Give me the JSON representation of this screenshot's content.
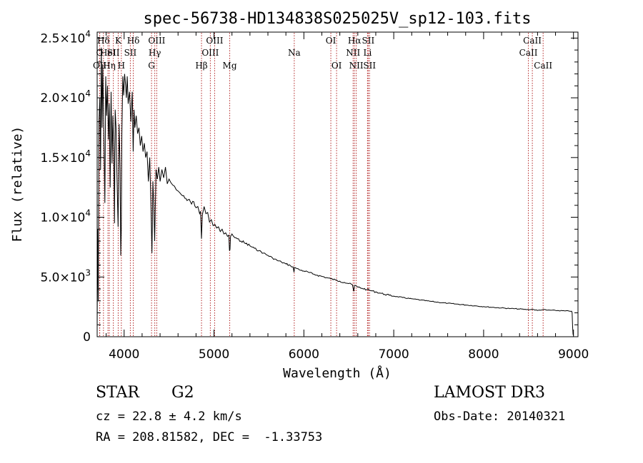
{
  "chart_data": {
    "type": "line",
    "title": "spec-56738-HD134838S025025V_sp12-103.fits",
    "xlabel": "Wavelength (Å)",
    "ylabel": "Flux (relative)",
    "xlim": [
      3700,
      9050
    ],
    "ylim": [
      0,
      25500
    ],
    "grid": false,
    "xticks": [
      {
        "value": 4000,
        "label": "4000"
      },
      {
        "value": 5000,
        "label": "5000"
      },
      {
        "value": 6000,
        "label": "6000"
      },
      {
        "value": 7000,
        "label": "7000"
      },
      {
        "value": 8000,
        "label": "8000"
      },
      {
        "value": 9000,
        "label": "9000"
      }
    ],
    "yticks": [
      {
        "value": 0,
        "mantissa": "0",
        "exp": ""
      },
      {
        "value": 5000,
        "mantissa": "5.0×10",
        "exp": "3"
      },
      {
        "value": 10000,
        "mantissa": "1.0×10",
        "exp": "4"
      },
      {
        "value": 15000,
        "mantissa": "1.5×10",
        "exp": "4"
      },
      {
        "value": 20000,
        "mantissa": "2.0×10",
        "exp": "4"
      },
      {
        "value": 25000,
        "mantissa": "2.5×10",
        "exp": "4"
      }
    ],
    "series": [
      {
        "name": "flux",
        "x": [
          3700,
          3705,
          3712,
          3720,
          3730,
          3738,
          3746,
          3755,
          3762,
          3770,
          3778,
          3786,
          3795,
          3805,
          3815,
          3825,
          3835,
          3845,
          3855,
          3865,
          3875,
          3885,
          3893,
          3900,
          3910,
          3920,
          3933,
          3945,
          3955,
          3962,
          3968,
          3975,
          3985,
          3995,
          4005,
          4015,
          4025,
          4035,
          4045,
          4060,
          4075,
          4090,
          4101,
          4110,
          4120,
          4135,
          4150,
          4165,
          4180,
          4195,
          4210,
          4225,
          4240,
          4255,
          4270,
          4285,
          4300,
          4310,
          4320,
          4330,
          4340,
          4355,
          4370,
          4385,
          4400,
          4420,
          4440,
          4460,
          4480,
          4500,
          4520,
          4540,
          4560,
          4580,
          4600,
          4625,
          4650,
          4675,
          4700,
          4725,
          4750,
          4775,
          4800,
          4820,
          4840,
          4850,
          4861,
          4870,
          4890,
          4910,
          4930,
          4950,
          4970,
          4990,
          5010,
          5030,
          5050,
          5070,
          5090,
          5110,
          5130,
          5150,
          5165,
          5172,
          5178,
          5184,
          5200,
          5230,
          5260,
          5300,
          5350,
          5400,
          5450,
          5500,
          5550,
          5600,
          5650,
          5700,
          5750,
          5800,
          5850,
          5880,
          5890,
          5896,
          5910,
          5950,
          6000,
          6050,
          6100,
          6150,
          6200,
          6250,
          6300,
          6350,
          6400,
          6450,
          6500,
          6540,
          6555,
          6563,
          6570,
          6600,
          6650,
          6700,
          6750,
          6800,
          6850,
          6900,
          6950,
          7000,
          7100,
          7200,
          7300,
          7400,
          7500,
          7600,
          7700,
          7800,
          7900,
          8000,
          8100,
          8200,
          8300,
          8400,
          8498,
          8542,
          8600,
          8662,
          8700,
          8800,
          8900,
          8950,
          8980,
          8985,
          8990,
          8995,
          9000
        ],
        "y": [
          500,
          9000,
          3000,
          18000,
          20000,
          14000,
          24200,
          17500,
          22800,
          19000,
          15200,
          11200,
          21800,
          18500,
          21000,
          16500,
          19500,
          12500,
          20500,
          14500,
          18500,
          15500,
          9500,
          19000,
          17500,
          13500,
          9200,
          17800,
          14000,
          6800,
          8800,
          17000,
          21800,
          20200,
          22000,
          21200,
          20000,
          21800,
          19500,
          20500,
          18000,
          20500,
          15500,
          19000,
          17500,
          18500,
          17000,
          17500,
          16000,
          16800,
          15500,
          16200,
          15000,
          15500,
          13000,
          15000,
          10500,
          7000,
          13000,
          11000,
          8000,
          14000,
          13200,
          14200,
          13000,
          14000,
          13300,
          14200,
          12800,
          13200,
          12900,
          12700,
          12600,
          12300,
          12200,
          12000,
          11800,
          11600,
          11400,
          11500,
          11100,
          11300,
          10800,
          10900,
          10300,
          10500,
          8200,
          10200,
          10900,
          10300,
          10400,
          9600,
          9800,
          9300,
          9400,
          9100,
          9200,
          8800,
          9000,
          8600,
          8700,
          8400,
          8500,
          7200,
          7300,
          8400,
          8600,
          8300,
          8200,
          8000,
          7800,
          7600,
          7400,
          7200,
          7000,
          6800,
          6600,
          6400,
          6250,
          6100,
          5950,
          5850,
          5400,
          5800,
          5750,
          5600,
          5500,
          5400,
          5250,
          5150,
          5050,
          4950,
          4850,
          4750,
          4650,
          4550,
          4450,
          4350,
          3800,
          4300,
          4300,
          4150,
          4050,
          3950,
          3850,
          3750,
          3650,
          3550,
          3470,
          3400,
          3280,
          3170,
          3070,
          2970,
          2880,
          2800,
          2730,
          2660,
          2590,
          2520,
          2460,
          2410,
          2360,
          2320,
          2270,
          2300,
          2200,
          2270,
          2230,
          2200,
          2160,
          2150,
          2130,
          2000,
          800,
          200,
          100
        ]
      }
    ],
    "lines": [
      {
        "label": "Hδ",
        "wave": 3770,
        "row": 1
      },
      {
        "label": "O",
        "wave": 3727,
        "row": 2
      },
      {
        "label": "OII",
        "wave": 3729,
        "row": 3
      },
      {
        "label": "HeI",
        "wave": 3820,
        "row": 2
      },
      {
        "label": "Hη",
        "wave": 3835,
        "row": 3
      },
      {
        "label": "K",
        "wave": 3934,
        "row": 1
      },
      {
        "label": "SII",
        "wave": 3880,
        "row": 2
      },
      {
        "label": "H",
        "wave": 3969,
        "row": 3
      },
      {
        "label": "Hδ",
        "wave": 4102,
        "row": 1
      },
      {
        "label": "SII",
        "wave": 4069,
        "row": 2
      },
      {
        "label": "OIII",
        "wave": 4363,
        "row": 1
      },
      {
        "label": "Hγ",
        "wave": 4341,
        "row": 2
      },
      {
        "label": "G",
        "wave": 4305,
        "row": 3
      },
      {
        "label": "OIII",
        "wave": 5007,
        "row": 1
      },
      {
        "label": "OIII",
        "wave": 4959,
        "row": 2
      },
      {
        "label": "Hβ",
        "wave": 4861,
        "row": 3
      },
      {
        "label": "Mg",
        "wave": 5175,
        "row": 3
      },
      {
        "label": "Na",
        "wave": 5893,
        "row": 2
      },
      {
        "label": "OI",
        "wave": 6300,
        "row": 1
      },
      {
        "label": "OI",
        "wave": 6364,
        "row": 3
      },
      {
        "label": "Hα",
        "wave": 6563,
        "row": 1
      },
      {
        "label": "NII",
        "wave": 6548,
        "row": 2
      },
      {
        "label": "NII",
        "wave": 6583,
        "row": 3
      },
      {
        "label": "SII",
        "wave": 6716,
        "row": 1
      },
      {
        "label": "Li",
        "wave": 6708,
        "row": 2
      },
      {
        "label": "SII",
        "wave": 6731,
        "row": 3
      },
      {
        "label": "CaII",
        "wave": 8542,
        "row": 1
      },
      {
        "label": "CaII",
        "wave": 8498,
        "row": 2
      },
      {
        "label": "CaII",
        "wave": 8662,
        "row": 3
      }
    ]
  },
  "info": {
    "class": "STAR",
    "subclass": "G2",
    "survey": "LAMOST DR3",
    "cz": "cz = 22.8 ± 4.2 km/s",
    "obs_date": "Obs-Date: 20140321",
    "coords": "RA = 208.81582, DEC =  -1.33753"
  }
}
